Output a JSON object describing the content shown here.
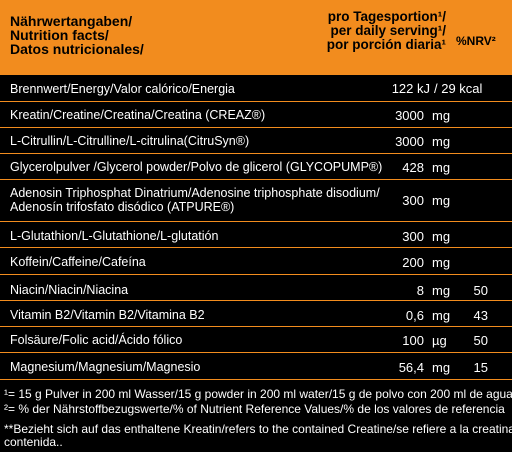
{
  "header": {
    "left": [
      "Nährwertangaben/",
      "Nutrition facts/",
      "Datos nutricionales/"
    ],
    "mid": [
      "pro Tagesportion¹/",
      "per daily serving¹/",
      "por porción diaria¹"
    ],
    "right": "%NRV²"
  },
  "rows": [
    {
      "name": "Brennwert/Energy/Valor calórico/Energia",
      "amount": "122 kJ",
      "unit": "/ 29  kcal",
      "nrv": ""
    },
    {
      "name": "Kreatin/Creatine/Creatina/Creatina (CREAZ®)",
      "amount": "3000",
      "unit": "mg",
      "nrv": ""
    },
    {
      "name": "L-Citrullin/L-Citrulline/L-citrulina(CitruSyn®)",
      "amount": "3000",
      "unit": "mg",
      "nrv": ""
    },
    {
      "name": "Glycerolpulver /Glycerol powder/Polvo de glicerol (GLYCOPUMP®)",
      "amount": "428",
      "unit": "mg",
      "nrv": ""
    },
    {
      "name": "Adenosin Triphosphat Dinatrium/Adenosine triphosphate disodium/",
      "name2": "Adenosín trifosfato disódico (ATPURE®)",
      "amount": "300",
      "unit": "mg",
      "nrv": ""
    },
    {
      "name": "L-Glutathion/L-Glutathione/L-glutatión",
      "amount": "300",
      "unit": "mg",
      "nrv": ""
    },
    {
      "name": "Koffein/Caffeine/Cafeína",
      "amount": "200",
      "unit": "mg",
      "nrv": ""
    },
    {
      "name": "Niacin/Niacin/Niacina",
      "amount": "8",
      "unit": "mg",
      "nrv": "50"
    },
    {
      "name": "Vitamin B2/Vitamin B2/Vitamina B2",
      "amount": "0,6",
      "unit": "mg",
      "nrv": "43"
    },
    {
      "name": "Folsäure/Folic acid/Ácido fólico",
      "amount": "100",
      "unit": "µg",
      "nrv": "50"
    },
    {
      "name": "Magnesium/Magnesium/Magnesio",
      "amount": "56,4",
      "unit": "mg",
      "nrv": "15"
    }
  ],
  "footnotes": [
    "¹= 15 g Pulver in 200 ml Wasser/15 g powder in 200 ml water/15 g de polvo con 200 ml de agua",
    "²= % der Nährstoffbezugswerte/% of Nutrient Reference Values/% de los valores de referencia",
    "**Bezieht sich auf das enthaltene Kreatin/refers to the contained Creatine/se refiere a la creatina",
    "contenida.."
  ]
}
